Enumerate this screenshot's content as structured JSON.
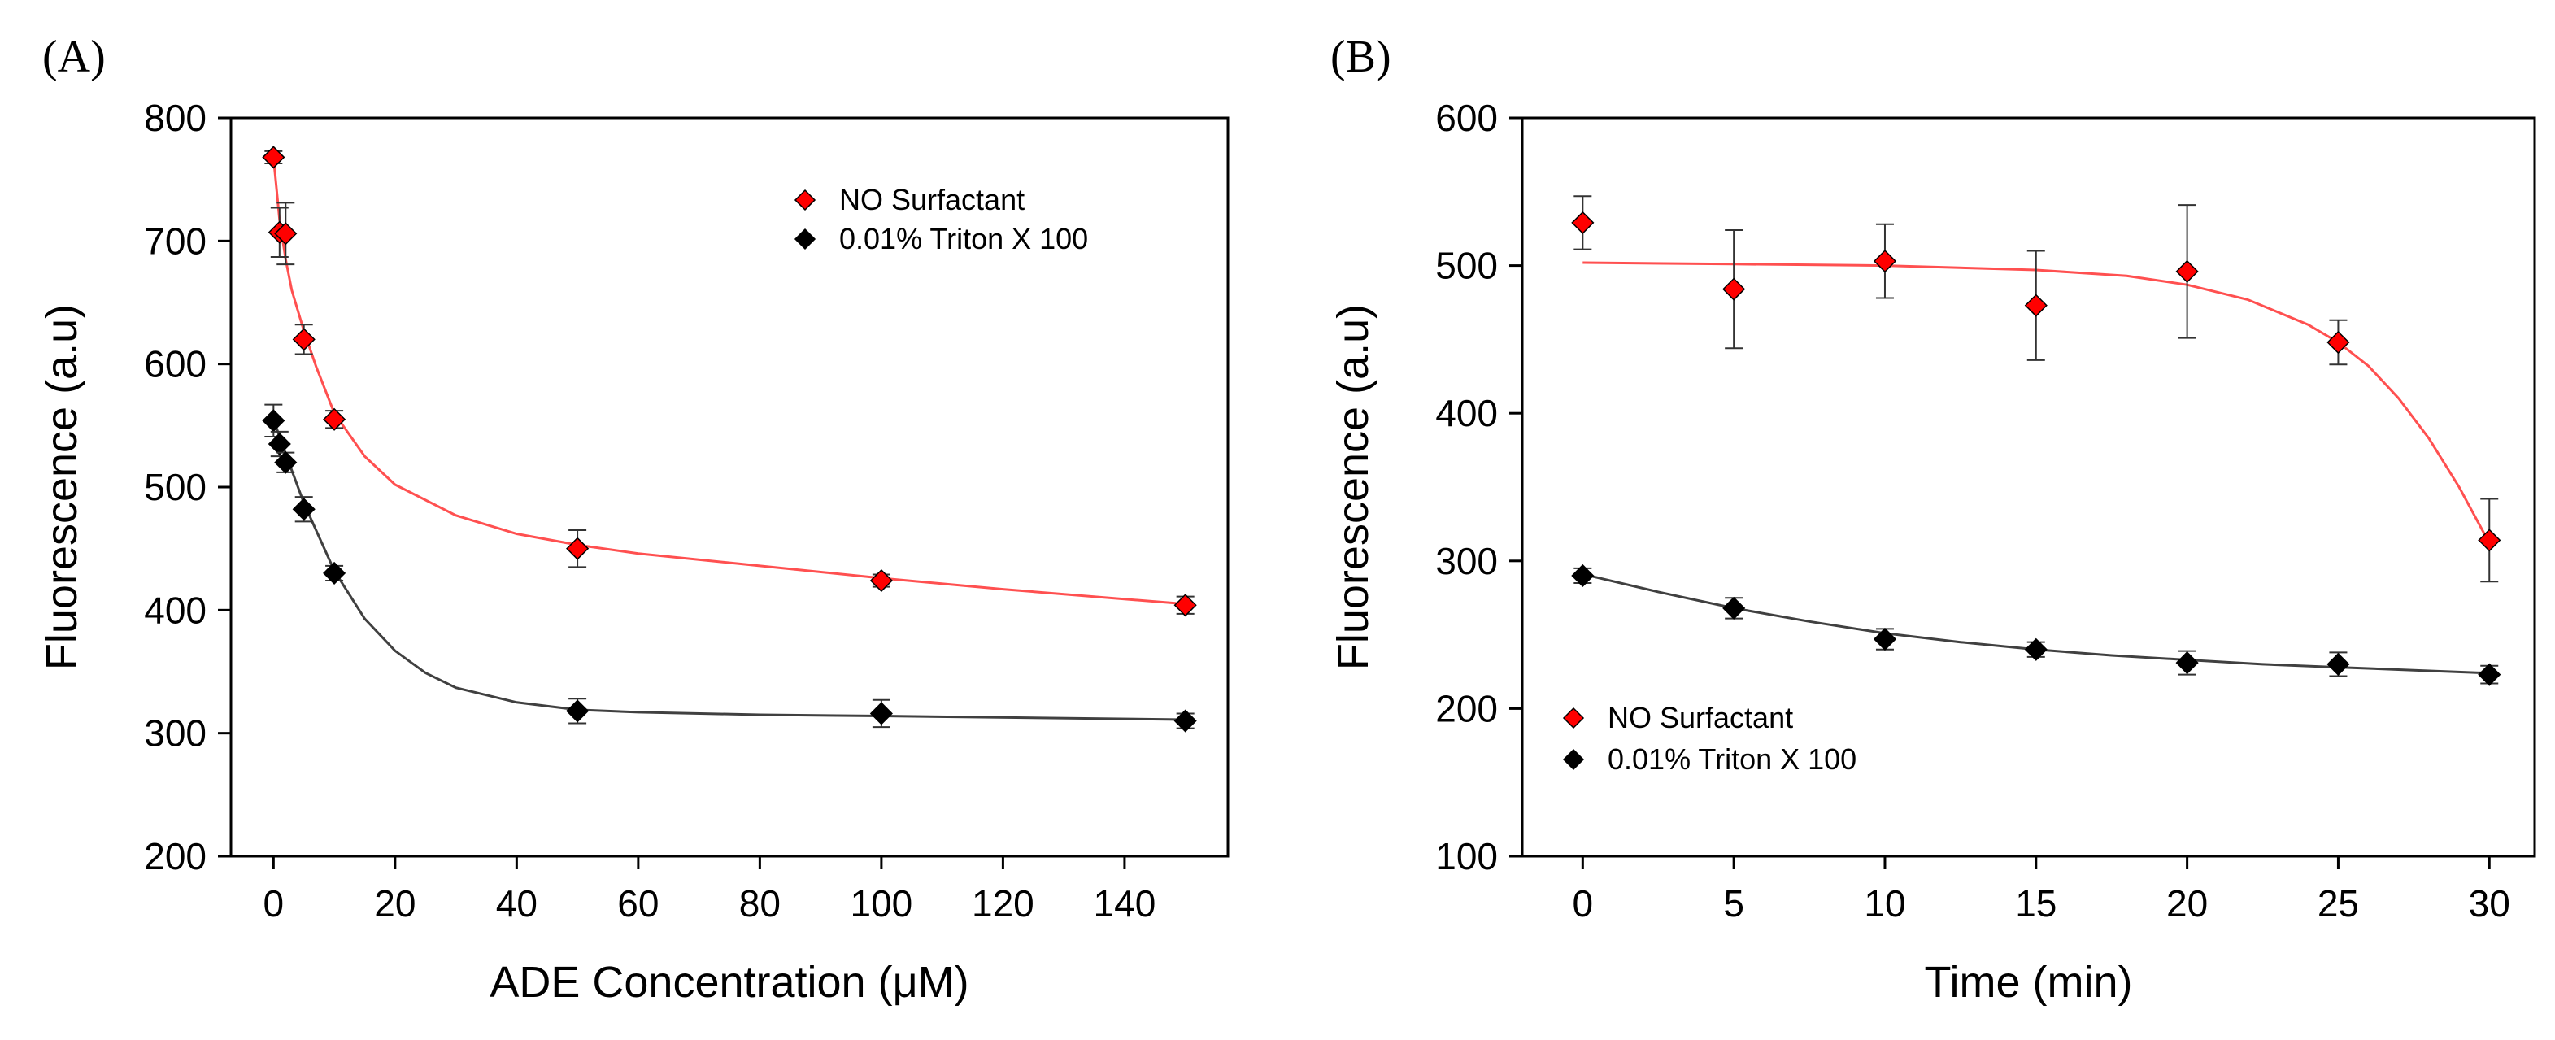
{
  "chart_data": [
    {
      "type": "scatter",
      "panel_label": "(A)",
      "title": "",
      "xlabel": "ADE Concentration (μM)",
      "ylabel": "Fluorescence (a.u)",
      "xlim": [
        -7,
        157
      ],
      "ylim": [
        200,
        800
      ],
      "xticks": [
        "0",
        "20",
        "40",
        "60",
        "80",
        "100",
        "120",
        "140"
      ],
      "yticks": [
        "200",
        "300",
        "400",
        "500",
        "600",
        "700",
        "800"
      ],
      "legend_position": "top-right",
      "series": [
        {
          "name": "NO Surfactant",
          "color": "#ff0000",
          "line_color": "#ff5050",
          "x": [
            0,
            1,
            2,
            5,
            10,
            50,
            100,
            150
          ],
          "y": [
            768,
            707,
            706,
            620,
            555,
            450,
            424,
            404
          ],
          "error": [
            5,
            20,
            25,
            12,
            7,
            15,
            5,
            7
          ],
          "fit": [
            [
              0,
              768
            ],
            [
              1,
              717
            ],
            [
              2,
              685
            ],
            [
              3,
              660
            ],
            [
              5,
              627
            ],
            [
              7,
              598
            ],
            [
              10,
              560
            ],
            [
              15,
              525
            ],
            [
              20,
              502
            ],
            [
              30,
              477
            ],
            [
              40,
              462
            ],
            [
              50,
              453
            ],
            [
              60,
              446
            ],
            [
              80,
              436
            ],
            [
              100,
              426
            ],
            [
              120,
              417
            ],
            [
              150,
              405
            ]
          ]
        },
        {
          "name": "0.01% Triton X 100",
          "color": "#000000",
          "line_color": "#404040",
          "x": [
            0,
            1,
            2,
            5,
            10,
            50,
            100,
            150
          ],
          "y": [
            554,
            535,
            520,
            482,
            430,
            318,
            316,
            310
          ],
          "error": [
            13,
            10,
            8,
            10,
            6,
            10,
            11,
            6
          ],
          "fit": [
            [
              0,
              555
            ],
            [
              2,
              527
            ],
            [
              5,
              487
            ],
            [
              10,
              432
            ],
            [
              15,
              393
            ],
            [
              20,
              367
            ],
            [
              25,
              349
            ],
            [
              30,
              337
            ],
            [
              40,
              325
            ],
            [
              50,
              319
            ],
            [
              60,
              317
            ],
            [
              80,
              315
            ],
            [
              100,
              314
            ],
            [
              150,
              311
            ]
          ]
        }
      ]
    },
    {
      "type": "scatter",
      "panel_label": "(B)",
      "title": "",
      "xlabel": "Time (min)",
      "ylabel": "Fluorescence (a.u)",
      "xlim": [
        -2,
        31.5
      ],
      "ylim": [
        100,
        600
      ],
      "xticks": [
        "0",
        "5",
        "10",
        "15",
        "20",
        "25",
        "30"
      ],
      "yticks": [
        "100",
        "200",
        "300",
        "400",
        "500",
        "600"
      ],
      "legend_position": "bottom-left",
      "series": [
        {
          "name": "NO Surfactant",
          "color": "#ff0000",
          "line_color": "#ff5050",
          "x": [
            0,
            5,
            10,
            15,
            20,
            25,
            30
          ],
          "y": [
            529,
            484,
            503,
            473,
            496,
            448,
            314
          ],
          "error": [
            18,
            40,
            25,
            37,
            45,
            15,
            28
          ],
          "fit": [
            [
              0,
              502
            ],
            [
              5,
              501
            ],
            [
              10,
              500
            ],
            [
              15,
              497
            ],
            [
              18,
              493
            ],
            [
              20,
              487
            ],
            [
              22,
              477
            ],
            [
              24,
              460
            ],
            [
              25,
              448
            ],
            [
              26,
              432
            ],
            [
              27,
              410
            ],
            [
              28,
              383
            ],
            [
              29,
              350
            ],
            [
              30,
              312
            ]
          ]
        },
        {
          "name": "0.01% Triton X 100",
          "color": "#000000",
          "line_color": "#404040",
          "x": [
            0,
            5,
            10,
            15,
            20,
            25,
            30
          ],
          "y": [
            290,
            268,
            247,
            240,
            231,
            230,
            223
          ],
          "error": [
            5,
            7,
            7,
            5,
            8,
            8,
            6
          ],
          "fit": [
            [
              0,
              291
            ],
            [
              2.5,
              279
            ],
            [
              5,
              268
            ],
            [
              7.5,
              259
            ],
            [
              10,
              251
            ],
            [
              12.5,
              245
            ],
            [
              15,
              240
            ],
            [
              17.5,
              236
            ],
            [
              20,
              233
            ],
            [
              22.5,
              230
            ],
            [
              25,
              228
            ],
            [
              27.5,
              226
            ],
            [
              30,
              224
            ]
          ]
        }
      ]
    }
  ]
}
